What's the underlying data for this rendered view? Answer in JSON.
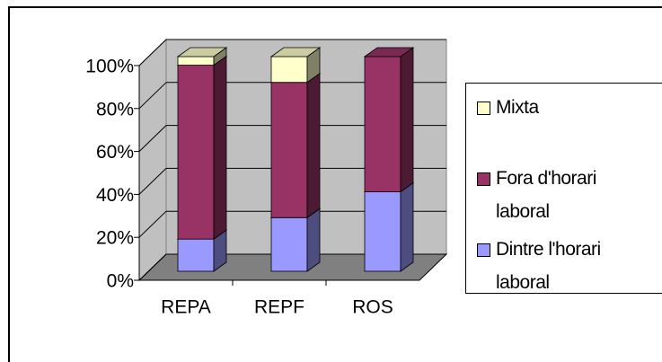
{
  "chart_data": {
    "type": "bar",
    "stacked": true,
    "categories": [
      "REPA",
      "REPF",
      "ROS"
    ],
    "series": [
      {
        "name": "Dintre l'horari laboral",
        "color": "#9999ff",
        "values": [
          15,
          25,
          37
        ]
      },
      {
        "name": "Fora d'horari laboral",
        "color": "#993366",
        "values": [
          81,
          63,
          63
        ]
      },
      {
        "name": "Mixta",
        "color": "#ffffcc",
        "values": [
          4,
          12,
          0
        ]
      }
    ],
    "ylim": [
      0,
      100
    ],
    "yticks": [
      {
        "value": 0,
        "label": "0%"
      },
      {
        "value": 20,
        "label": "20%"
      },
      {
        "value": 40,
        "label": "40%"
      },
      {
        "value": 60,
        "label": "60%"
      },
      {
        "value": 80,
        "label": "80%"
      },
      {
        "value": 100,
        "label": "100%"
      }
    ],
    "grid": true,
    "legend": "right"
  }
}
